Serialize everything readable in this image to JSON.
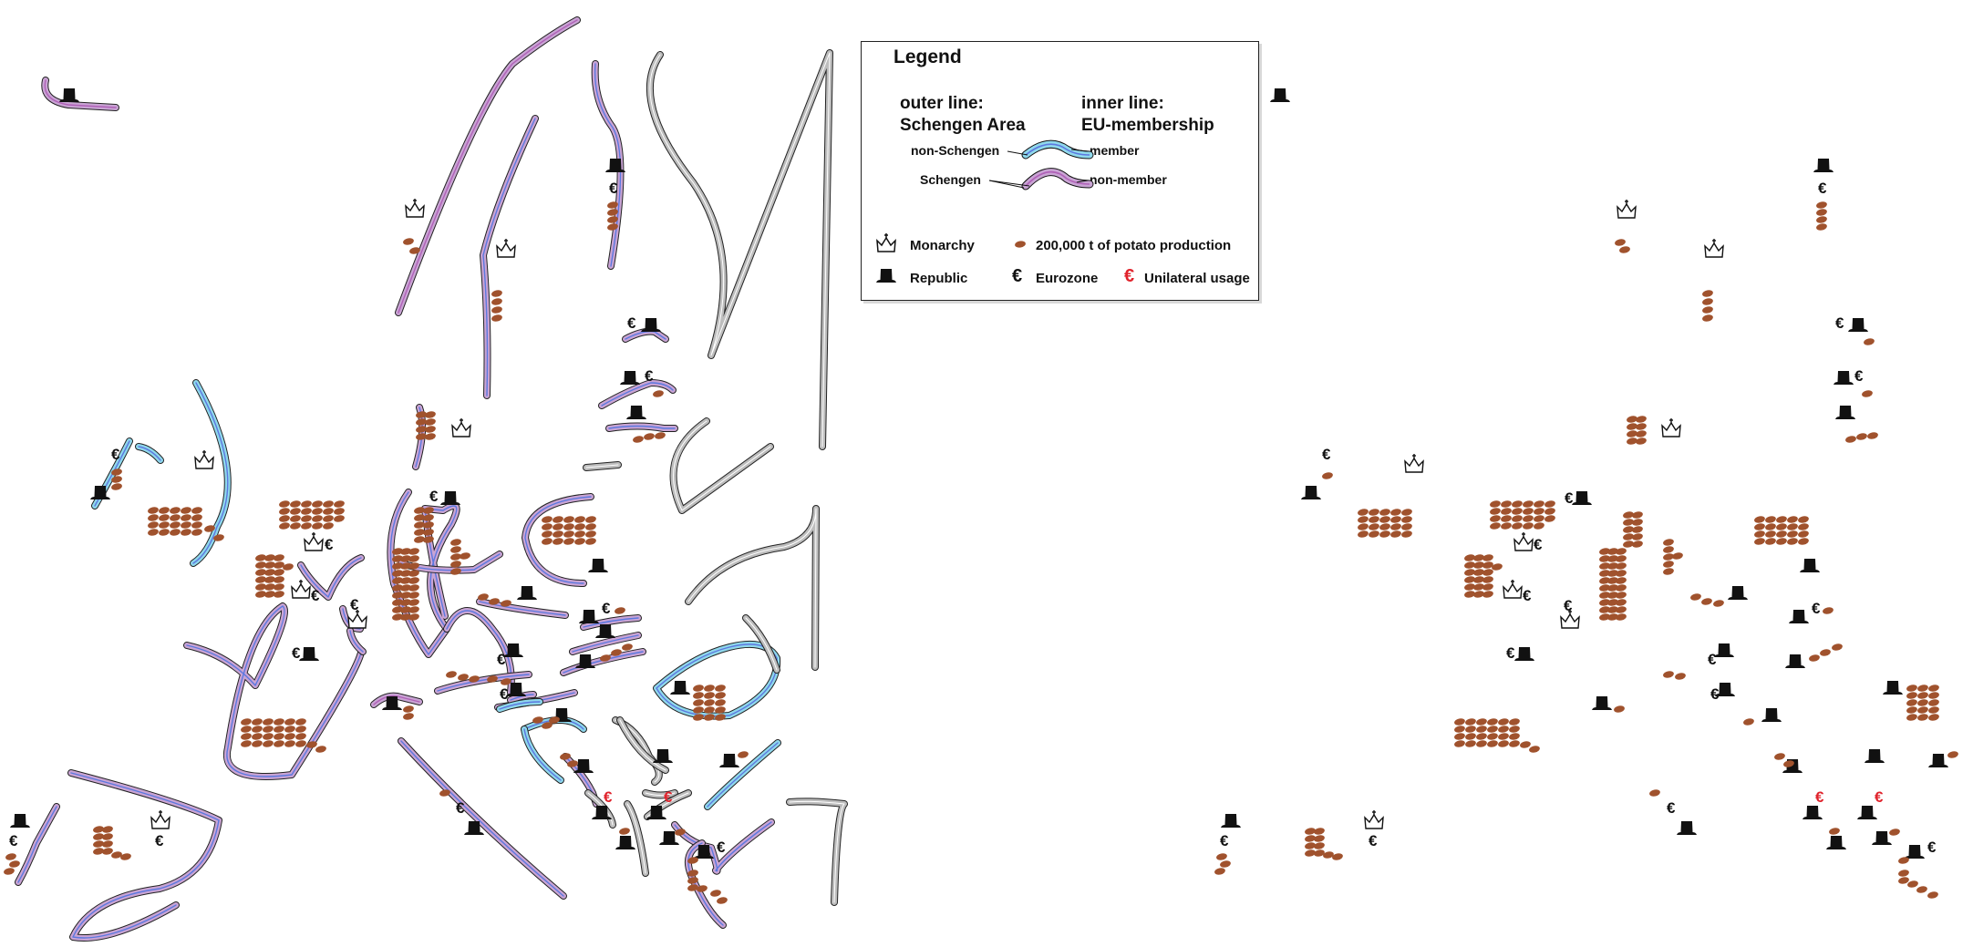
{
  "legend": {
    "title": "Legend",
    "outer_line_heading": "outer line:",
    "outer_line_subject": "Schengen Area",
    "inner_line_heading": "inner line:",
    "inner_line_subject": "EU-membership",
    "non_schengen_label": "non-Schengen",
    "member_label": "member",
    "schengen_label": "Schengen",
    "non_member_label": "non-member",
    "monarchy_label": "Monarchy",
    "republic_label": "Republic",
    "potato_label": "200,000 t of potato production",
    "eurozone_label": "Eurozone",
    "unilateral_label": "Unilateral usage",
    "euro_symbol": "€"
  },
  "colors": {
    "schengen_outer": "#c9a4d4",
    "non_schengen_outer": "#8fd8ec",
    "eu_member_inner": "#5c78e0",
    "non_member_inner": "#b060b8",
    "non_eu_grey": "#bdbdbd",
    "potato": "#a0522d",
    "euro": "#111111",
    "euro_unilateral": "#e0232c",
    "icon": "#111111"
  },
  "map": {
    "symbol_type": [
      "monarchy-crown",
      "republic-top-hat",
      "eurozone-euro",
      "unilateral-euro",
      "potato"
    ]
  }
}
